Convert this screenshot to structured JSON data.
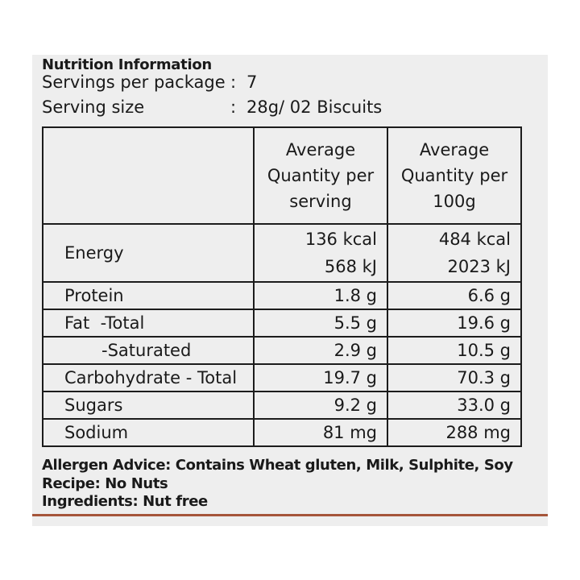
{
  "heading": "Nutrition Information",
  "servings": {
    "label": "Servings per package",
    "colon": ":",
    "value": "7"
  },
  "serving_size": {
    "label": "Serving size",
    "colon": ":",
    "value": "28g/ 02 Biscuits"
  },
  "table": {
    "header": {
      "per_serving": [
        "Average",
        "Quantity per",
        "serving"
      ],
      "per_100g": [
        "Average",
        "Quantity per",
        "100g"
      ]
    },
    "energy": {
      "name": "Energy",
      "per_serving": [
        "136 kcal",
        "568 kJ"
      ],
      "per_100g": [
        "484 kcal",
        "2023 kJ"
      ]
    },
    "rows": [
      {
        "name": "Protein",
        "per_serving": "1.8 g",
        "per_100g": "6.6 g"
      },
      {
        "name": "Fat  -Total",
        "per_serving": "5.5 g",
        "per_100g": "19.6 g"
      },
      {
        "name": "-Saturated",
        "per_serving": "2.9 g",
        "per_100g": "10.5 g"
      },
      {
        "name": "Carbohydrate - Total",
        "per_serving": "19.7 g",
        "per_100g": "70.3 g"
      },
      {
        "name": "Sugars",
        "per_serving": "9.2 g",
        "per_100g": "33.0 g"
      },
      {
        "name": "Sodium",
        "per_serving": "81 mg",
        "per_100g": "288 mg"
      }
    ]
  },
  "footer": {
    "allergen": "Allergen Advice: Contains Wheat gluten, Milk, Sulphite, Soy",
    "recipe": "Recipe: No Nuts",
    "ingredients": "Ingredients: Nut free"
  },
  "colors": {
    "panel": "#eeeeee",
    "rule": "#a5553a",
    "ink": "#1a1a1a"
  }
}
